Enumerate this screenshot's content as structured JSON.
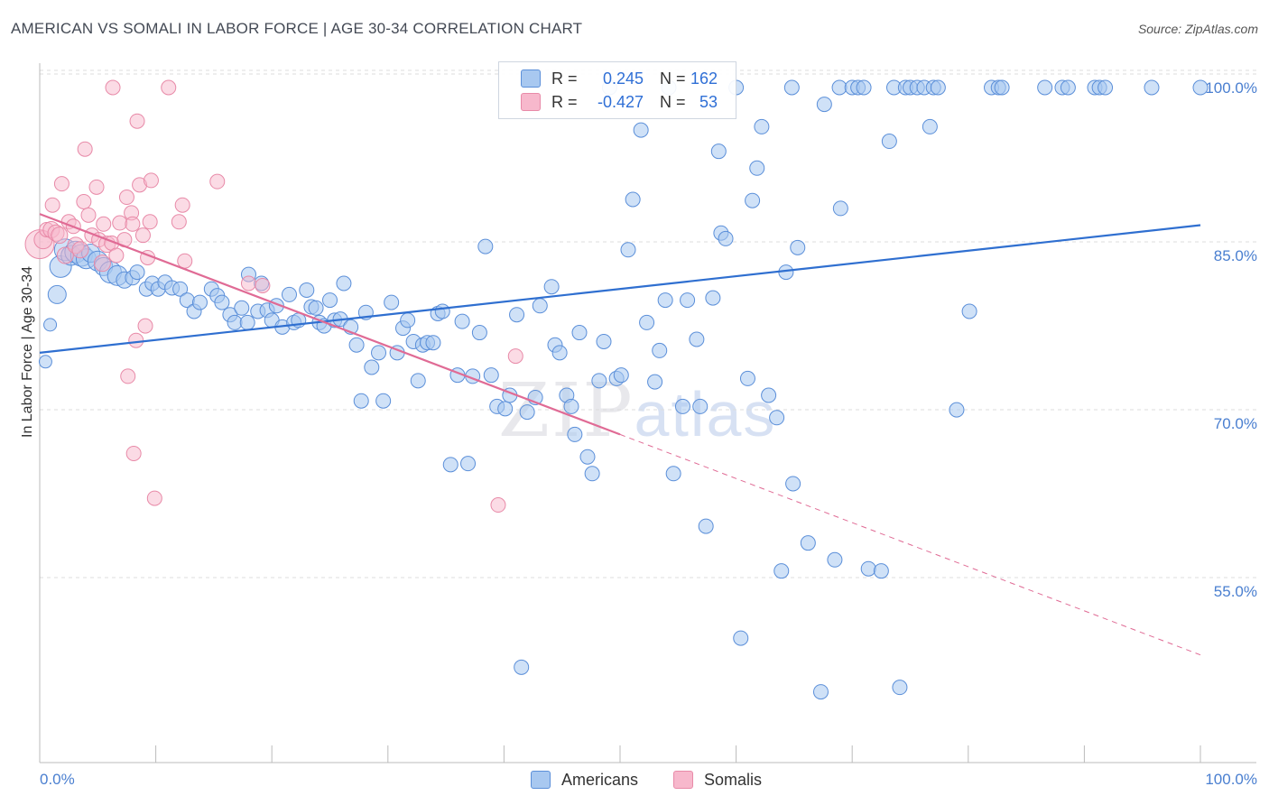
{
  "title": "AMERICAN VS SOMALI IN LABOR FORCE | AGE 30-34 CORRELATION CHART",
  "source": "Source: ZipAtlas.com",
  "y_axis_label": "In Labor Force | Age 30-34",
  "watermark": {
    "zip": "ZIP",
    "atlas": "atlas"
  },
  "legend": {
    "americans": {
      "r_label": "R =",
      "r_value": "0.245",
      "n_label": "N =",
      "n_value": "162",
      "name": "Americans"
    },
    "somalis": {
      "r_label": "R =",
      "r_value": "-0.427",
      "n_label": "N =",
      "n_value": "53",
      "name": "Somalis"
    }
  },
  "colors": {
    "americans_fill": "#a8c8f0",
    "americans_stroke": "#5b8fd9",
    "americans_line": "#2f6fd0",
    "somalis_fill": "#f7b8cc",
    "somalis_stroke": "#e88aa8",
    "somalis_line": "#e06b95",
    "tick_text": "#4a7fd0",
    "grid": "#dddddd"
  },
  "chart_data": {
    "type": "scatter",
    "title": "AMERICAN VS SOMALI IN LABOR FORCE | AGE 30-34 CORRELATION CHART",
    "ylabel": "In Labor Force | Age 30-34",
    "xlim": [
      0,
      100
    ],
    "ylim": [
      40,
      101
    ],
    "x_tick_labels": [
      "0.0%",
      "100.0%"
    ],
    "y_ticks": [
      55,
      70,
      85,
      100
    ],
    "y_tick_labels": [
      "55.0%",
      "70.0%",
      "85.0%",
      "100.0%"
    ],
    "grid": "horizontal dashed",
    "legend_position": "top-center",
    "series": [
      {
        "name": "Americans",
        "R": 0.245,
        "N": 162,
        "trend": {
          "x": [
            0,
            100
          ],
          "y": [
            76.3,
            87.7
          ],
          "style": "solid"
        },
        "points": [
          [
            0.5,
            75.5,
            7
          ],
          [
            0.9,
            78.8,
            7
          ],
          [
            1.5,
            81.5,
            10
          ],
          [
            1.8,
            84.0,
            12
          ],
          [
            2.2,
            85.5,
            12
          ],
          [
            2.7,
            85.0,
            11
          ],
          [
            3.1,
            85.3,
            12
          ],
          [
            3.6,
            85.0,
            12
          ],
          [
            4.0,
            84.7,
            11
          ],
          [
            4.4,
            85.2,
            10
          ],
          [
            5.0,
            84.5,
            11
          ],
          [
            5.5,
            84.0,
            10
          ],
          [
            6.1,
            83.5,
            12
          ],
          [
            6.7,
            83.2,
            11
          ],
          [
            7.3,
            82.8,
            9
          ],
          [
            8.0,
            83.0,
            8
          ],
          [
            8.4,
            83.5,
            8
          ],
          [
            9.2,
            82.0,
            8
          ],
          [
            9.7,
            82.5,
            8
          ],
          [
            10.2,
            82.0,
            8
          ],
          [
            10.8,
            82.6,
            8
          ],
          [
            11.4,
            82.1,
            8
          ],
          [
            12.1,
            82.0,
            8
          ],
          [
            12.7,
            81.0,
            8
          ],
          [
            13.3,
            80.0,
            8
          ],
          [
            13.8,
            80.8,
            8
          ],
          [
            14.8,
            82.0,
            8
          ],
          [
            15.3,
            81.4,
            8
          ],
          [
            15.7,
            80.8,
            8
          ],
          [
            16.4,
            79.7,
            8
          ],
          [
            16.8,
            79.0,
            8
          ],
          [
            17.4,
            80.3,
            8
          ],
          [
            17.9,
            79.0,
            8
          ],
          [
            18.0,
            83.3,
            8
          ],
          [
            18.8,
            80.0,
            8
          ],
          [
            19.1,
            82.5,
            8
          ],
          [
            19.6,
            80.1,
            8
          ],
          [
            20.0,
            79.2,
            8
          ],
          [
            20.4,
            80.5,
            8
          ],
          [
            20.9,
            78.6,
            8
          ],
          [
            21.5,
            81.5,
            8
          ],
          [
            21.9,
            79.0,
            8
          ],
          [
            22.3,
            79.2,
            8
          ],
          [
            23.0,
            81.9,
            8
          ],
          [
            23.4,
            80.4,
            8
          ],
          [
            23.8,
            80.3,
            8
          ],
          [
            24.1,
            79.0,
            8
          ],
          [
            24.5,
            78.7,
            8
          ],
          [
            25.0,
            81.0,
            8
          ],
          [
            25.4,
            79.2,
            8
          ],
          [
            25.9,
            79.3,
            8
          ],
          [
            26.2,
            82.5,
            8
          ],
          [
            26.8,
            78.6,
            8
          ],
          [
            27.3,
            77.0,
            8
          ],
          [
            27.7,
            72.0,
            8
          ],
          [
            28.1,
            79.9,
            8
          ],
          [
            28.6,
            75.0,
            8
          ],
          [
            29.2,
            76.3,
            8
          ],
          [
            29.6,
            72.0,
            8
          ],
          [
            30.3,
            80.8,
            8
          ],
          [
            30.8,
            76.3,
            8
          ],
          [
            31.3,
            78.5,
            8
          ],
          [
            31.7,
            79.2,
            8
          ],
          [
            32.2,
            77.3,
            8
          ],
          [
            32.6,
            73.8,
            8
          ],
          [
            33.0,
            77.0,
            8
          ],
          [
            33.4,
            77.2,
            8
          ],
          [
            33.9,
            77.2,
            8
          ],
          [
            34.3,
            79.8,
            8
          ],
          [
            34.7,
            80.0,
            8
          ],
          [
            35.4,
            66.3,
            8
          ],
          [
            36.0,
            74.3,
            8
          ],
          [
            36.4,
            79.1,
            8
          ],
          [
            36.9,
            66.4,
            8
          ],
          [
            37.3,
            74.2,
            8
          ],
          [
            37.9,
            78.1,
            8
          ],
          [
            38.4,
            85.8,
            8
          ],
          [
            38.9,
            74.3,
            8
          ],
          [
            39.4,
            71.5,
            8
          ],
          [
            40.1,
            71.3,
            8
          ],
          [
            40.5,
            72.5,
            8
          ],
          [
            41.1,
            79.7,
            8
          ],
          [
            41.5,
            48.2,
            8
          ],
          [
            42.0,
            71.0,
            8
          ],
          [
            42.7,
            72.3,
            8
          ],
          [
            43.1,
            80.5,
            8
          ],
          [
            44.1,
            82.2,
            8
          ],
          [
            44.4,
            77.0,
            8
          ],
          [
            44.8,
            76.3,
            8
          ],
          [
            45.4,
            72.5,
            8
          ],
          [
            45.8,
            71.5,
            8
          ],
          [
            46.1,
            69.0,
            8
          ],
          [
            46.5,
            78.1,
            8
          ],
          [
            47.2,
            67.0,
            8
          ],
          [
            47.6,
            65.5,
            8
          ],
          [
            48.2,
            73.8,
            8
          ],
          [
            48.6,
            77.3,
            8
          ],
          [
            49.1,
            100.0,
            8
          ],
          [
            49.7,
            74.0,
            8
          ],
          [
            50.1,
            74.3,
            8
          ],
          [
            50.7,
            85.5,
            8
          ],
          [
            51.1,
            90.0,
            8
          ],
          [
            51.8,
            96.2,
            8
          ],
          [
            52.3,
            79.0,
            8
          ],
          [
            53.0,
            73.7,
            8
          ],
          [
            53.4,
            76.5,
            8
          ],
          [
            53.9,
            81.0,
            8
          ],
          [
            54.2,
            100.0,
            8
          ],
          [
            54.6,
            65.5,
            8
          ],
          [
            55.4,
            71.5,
            8
          ],
          [
            55.8,
            81.0,
            8
          ],
          [
            56.6,
            77.5,
            8
          ],
          [
            56.9,
            71.5,
            8
          ],
          [
            57.4,
            60.8,
            8
          ],
          [
            58.0,
            81.2,
            8
          ],
          [
            58.5,
            94.3,
            8
          ],
          [
            58.7,
            87.0,
            8
          ],
          [
            59.1,
            86.5,
            8
          ],
          [
            60.0,
            100.0,
            8
          ],
          [
            60.4,
            50.8,
            8
          ],
          [
            61.0,
            74.0,
            8
          ],
          [
            61.4,
            89.9,
            8
          ],
          [
            61.8,
            92.8,
            8
          ],
          [
            62.2,
            96.5,
            8
          ],
          [
            62.8,
            72.5,
            8
          ],
          [
            63.5,
            70.5,
            8
          ],
          [
            63.9,
            56.8,
            8
          ],
          [
            64.3,
            83.5,
            8
          ],
          [
            64.9,
            64.6,
            8
          ],
          [
            65.3,
            85.7,
            8
          ],
          [
            64.8,
            100.0,
            8
          ],
          [
            66.2,
            59.3,
            8
          ],
          [
            67.3,
            46.0,
            8
          ],
          [
            67.6,
            98.5,
            8
          ],
          [
            68.5,
            57.8,
            8
          ],
          [
            69.0,
            89.2,
            8
          ],
          [
            68.9,
            100.0,
            8
          ],
          [
            70.0,
            100.0,
            8
          ],
          [
            70.5,
            100.0,
            8
          ],
          [
            71.0,
            100.0,
            8
          ],
          [
            71.4,
            57.0,
            8
          ],
          [
            72.5,
            56.8,
            8
          ],
          [
            73.2,
            95.2,
            8
          ],
          [
            73.6,
            100.0,
            8
          ],
          [
            74.1,
            46.4,
            8
          ],
          [
            74.6,
            100.0,
            8
          ],
          [
            75.0,
            100.0,
            8
          ],
          [
            75.6,
            100.0,
            8
          ],
          [
            76.2,
            100.0,
            8
          ],
          [
            76.7,
            96.5,
            8
          ],
          [
            77.0,
            100.0,
            8
          ],
          [
            77.4,
            100.0,
            8
          ],
          [
            79.0,
            71.2,
            8
          ],
          [
            80.1,
            80.0,
            8
          ],
          [
            82.0,
            100.0,
            8
          ],
          [
            82.6,
            100.0,
            8
          ],
          [
            82.9,
            100.0,
            8
          ],
          [
            86.6,
            100.0,
            8
          ],
          [
            88.1,
            100.0,
            8
          ],
          [
            88.6,
            100.0,
            8
          ],
          [
            90.9,
            100.0,
            8
          ],
          [
            91.3,
            100.0,
            8
          ],
          [
            91.8,
            100.0,
            8
          ],
          [
            95.8,
            100.0,
            8
          ],
          [
            100.0,
            100.0,
            8
          ]
        ]
      },
      {
        "name": "Somalis",
        "R": -0.427,
        "N": 53,
        "trend": {
          "x": [
            0,
            50
          ],
          "y": [
            88.7,
            69.0
          ],
          "style": "solid"
        },
        "trend_extension": {
          "x": [
            50,
            100
          ],
          "y": [
            69.0,
            49.3
          ],
          "style": "dashed"
        },
        "points": [
          [
            0.0,
            86.0,
            16
          ],
          [
            0.3,
            86.4,
            10
          ],
          [
            0.6,
            87.3,
            8
          ],
          [
            1.0,
            87.3,
            9
          ],
          [
            1.1,
            89.5,
            8
          ],
          [
            1.4,
            87.0,
            9
          ],
          [
            1.7,
            86.8,
            9
          ],
          [
            1.9,
            91.4,
            8
          ],
          [
            2.2,
            85.0,
            9
          ],
          [
            2.5,
            88.0,
            8
          ],
          [
            2.9,
            87.6,
            8
          ],
          [
            3.1,
            85.9,
            9
          ],
          [
            3.5,
            85.5,
            9
          ],
          [
            3.8,
            89.8,
            8
          ],
          [
            3.9,
            94.5,
            8
          ],
          [
            4.2,
            88.6,
            8
          ],
          [
            4.5,
            86.8,
            8
          ],
          [
            4.9,
            91.1,
            8
          ],
          [
            5.1,
            86.4,
            8
          ],
          [
            5.4,
            84.3,
            9
          ],
          [
            5.5,
            87.8,
            8
          ],
          [
            5.8,
            86.0,
            9
          ],
          [
            6.2,
            86.1,
            8
          ],
          [
            6.3,
            100.0,
            8
          ],
          [
            6.6,
            85.0,
            8
          ],
          [
            6.9,
            87.9,
            8
          ],
          [
            7.3,
            86.4,
            8
          ],
          [
            7.5,
            90.2,
            8
          ],
          [
            7.6,
            74.2,
            8
          ],
          [
            7.9,
            88.8,
            8
          ],
          [
            8.0,
            87.8,
            8
          ],
          [
            8.1,
            67.3,
            8
          ],
          [
            8.3,
            77.4,
            8
          ],
          [
            8.4,
            97.0,
            8
          ],
          [
            8.6,
            91.3,
            8
          ],
          [
            8.9,
            86.8,
            8
          ],
          [
            9.1,
            78.7,
            8
          ],
          [
            9.3,
            84.8,
            8
          ],
          [
            9.5,
            88.0,
            8
          ],
          [
            9.6,
            91.7,
            8
          ],
          [
            9.9,
            63.3,
            8
          ],
          [
            11.1,
            100.0,
            8
          ],
          [
            12.0,
            88.0,
            8
          ],
          [
            12.3,
            89.5,
            8
          ],
          [
            12.5,
            84.5,
            8
          ],
          [
            15.3,
            91.6,
            8
          ],
          [
            18.0,
            82.5,
            8
          ],
          [
            19.2,
            82.3,
            8
          ],
          [
            39.5,
            62.7,
            8
          ],
          [
            41.0,
            76.0,
            8
          ]
        ]
      }
    ]
  }
}
